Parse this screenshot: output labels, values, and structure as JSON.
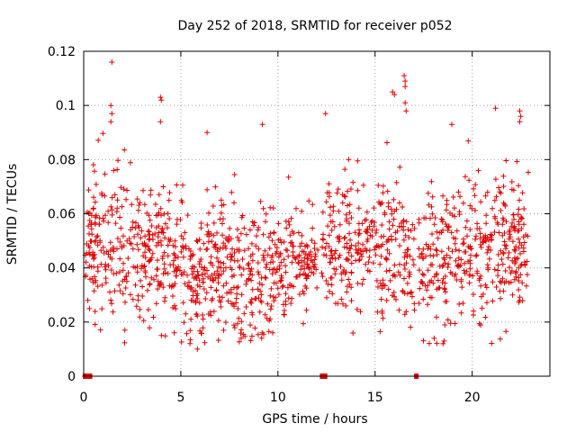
{
  "chart_data": {
    "type": "scatter",
    "title": "Day 252 of 2018, SRMTID for receiver p052",
    "xlabel": "GPS time / hours",
    "ylabel": "SRMTID / TECUs",
    "xlim": [
      0,
      24
    ],
    "ylim": [
      0,
      0.12
    ],
    "x_ticks": [
      0,
      5,
      10,
      15,
      20
    ],
    "x_tick_labels": [
      "0",
      "5",
      "10",
      "15",
      "20"
    ],
    "y_ticks": [
      0,
      0.02,
      0.04,
      0.06,
      0.08,
      0.1,
      0.12
    ],
    "y_tick_labels": [
      "0",
      "0.02",
      "0.04",
      "0.06",
      "0.08",
      "0.1",
      "0.12"
    ],
    "grid": true,
    "marker": "+",
    "series": [
      {
        "name": "SRMTID",
        "color": "#e00000",
        "data_gaps_hours": [
          [
            12.05,
            12.25
          ],
          [
            17.05,
            17.25
          ]
        ],
        "zero_value_clusters_hours": [
          [
            0.05,
            0.35
          ],
          [
            12.25,
            12.45
          ],
          [
            17.1,
            17.15
          ]
        ],
        "envelope": [
          {
            "x": 0.0,
            "mean": 0.047,
            "spread": 0.013
          },
          {
            "x": 1.0,
            "mean": 0.052,
            "spread": 0.015
          },
          {
            "x": 2.0,
            "mean": 0.05,
            "spread": 0.014
          },
          {
            "x": 3.0,
            "mean": 0.043,
            "spread": 0.012
          },
          {
            "x": 4.0,
            "mean": 0.049,
            "spread": 0.013
          },
          {
            "x": 5.0,
            "mean": 0.042,
            "spread": 0.013
          },
          {
            "x": 6.0,
            "mean": 0.035,
            "spread": 0.012
          },
          {
            "x": 7.0,
            "mean": 0.045,
            "spread": 0.014
          },
          {
            "x": 8.0,
            "mean": 0.037,
            "spread": 0.012
          },
          {
            "x": 9.0,
            "mean": 0.036,
            "spread": 0.012
          },
          {
            "x": 10.0,
            "mean": 0.042,
            "spread": 0.011
          },
          {
            "x": 11.0,
            "mean": 0.042,
            "spread": 0.009
          },
          {
            "x": 12.0,
            "mean": 0.043,
            "spread": 0.009
          },
          {
            "x": 13.0,
            "mean": 0.049,
            "spread": 0.013
          },
          {
            "x": 14.0,
            "mean": 0.047,
            "spread": 0.013
          },
          {
            "x": 15.0,
            "mean": 0.046,
            "spread": 0.013
          },
          {
            "x": 16.0,
            "mean": 0.046,
            "spread": 0.015
          },
          {
            "x": 17.0,
            "mean": 0.041,
            "spread": 0.013
          },
          {
            "x": 18.0,
            "mean": 0.042,
            "spread": 0.013
          },
          {
            "x": 19.0,
            "mean": 0.045,
            "spread": 0.013
          },
          {
            "x": 20.0,
            "mean": 0.046,
            "spread": 0.013
          },
          {
            "x": 21.0,
            "mean": 0.05,
            "spread": 0.013
          },
          {
            "x": 22.0,
            "mean": 0.046,
            "spread": 0.013
          },
          {
            "x": 22.9,
            "mean": 0.05,
            "spread": 0.012
          }
        ],
        "outliers": [
          {
            "x": 1.45,
            "y": 0.116
          },
          {
            "x": 1.4,
            "y": 0.1
          },
          {
            "x": 1.45,
            "y": 0.097
          },
          {
            "x": 1.4,
            "y": 0.094
          },
          {
            "x": 3.95,
            "y": 0.103
          },
          {
            "x": 4.0,
            "y": 0.102
          },
          {
            "x": 3.95,
            "y": 0.094
          },
          {
            "x": 6.35,
            "y": 0.09
          },
          {
            "x": 9.2,
            "y": 0.093
          },
          {
            "x": 12.45,
            "y": 0.097
          },
          {
            "x": 15.9,
            "y": 0.105
          },
          {
            "x": 16.0,
            "y": 0.104
          },
          {
            "x": 16.5,
            "y": 0.111
          },
          {
            "x": 16.55,
            "y": 0.109
          },
          {
            "x": 16.55,
            "y": 0.107
          },
          {
            "x": 16.55,
            "y": 0.101
          },
          {
            "x": 16.6,
            "y": 0.098
          },
          {
            "x": 18.95,
            "y": 0.093
          },
          {
            "x": 21.2,
            "y": 0.099
          },
          {
            "x": 22.45,
            "y": 0.098
          },
          {
            "x": 22.5,
            "y": 0.096
          },
          {
            "x": 22.45,
            "y": 0.094
          },
          {
            "x": 5.85,
            "y": 0.01
          },
          {
            "x": 18.5,
            "y": 0.012
          },
          {
            "x": 18.55,
            "y": 0.013
          }
        ],
        "n_points": 1500
      }
    ]
  }
}
